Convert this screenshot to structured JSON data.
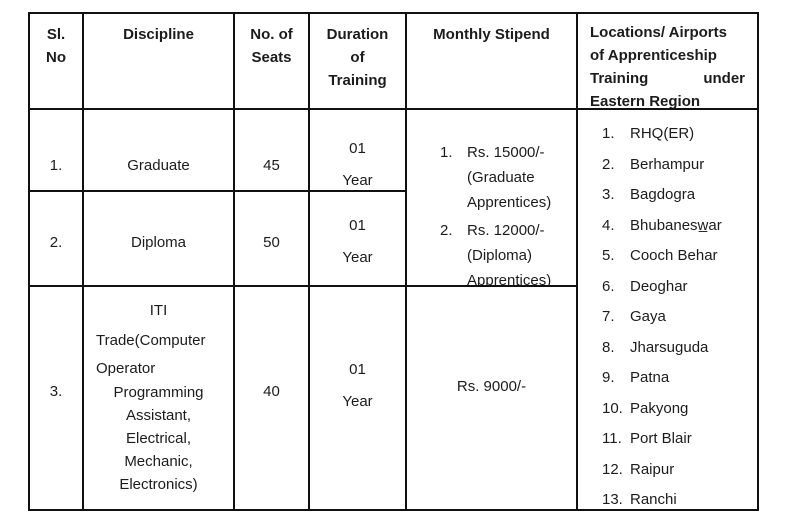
{
  "table": {
    "border_color": "#111111",
    "text_color": "#1c1c1c",
    "background": "#ffffff",
    "header": {
      "sl_no_line1": "Sl.",
      "sl_no_line2": "No",
      "discipline": "Discipline",
      "seats_line1": "No. of",
      "seats_line2": "Seats",
      "duration_line1": "Duration",
      "duration_line2": "of",
      "duration_line3": "Training",
      "stipend": "Monthly Stipend",
      "locations_line1": "Locations/ Airports",
      "locations_line2": "of Apprenticeship",
      "locations_line3_left": "Training",
      "locations_line3_right": "under",
      "locations_line4": "Eastern Region"
    },
    "rows": [
      {
        "sl": "1.",
        "discipline": "Graduate",
        "seats": "45",
        "duration_line1": "01",
        "duration_line2": "Year"
      },
      {
        "sl": "2.",
        "discipline": "Diploma",
        "seats": "50",
        "duration_line1": "01",
        "duration_line2": "Year"
      },
      {
        "sl": "3.",
        "seats": "40",
        "duration_line1": "01",
        "duration_line2": "Year",
        "stipend": "Rs. 9000/-",
        "discipline_lines": [
          "ITI",
          "Trade(Computer",
          "Operator",
          "Programming",
          "Assistant,",
          "Electrical,",
          "Mechanic,",
          "Electronics)"
        ]
      }
    ],
    "stipend_merged": {
      "items": [
        {
          "num": "1.",
          "line1": "Rs. 15000/-",
          "line2": "(Graduate",
          "line3": "Apprentices)"
        },
        {
          "num": "2.",
          "line1": "Rs. 12000/-",
          "line2": "(Diploma)",
          "line3": "Apprentices)"
        }
      ]
    },
    "locations_items": [
      {
        "num": "1.",
        "name": "RHQ(ER)"
      },
      {
        "num": "2.",
        "name": "Berhampur"
      },
      {
        "num": "3.",
        "name": "Bagdogra"
      },
      {
        "num": "4.",
        "name": "Bhubanesw̲ar"
      },
      {
        "num": "5.",
        "name": "Cooch Behar"
      },
      {
        "num": "6.",
        "name": "Deoghar"
      },
      {
        "num": "7.",
        "name": "Gaya"
      },
      {
        "num": "8.",
        "name": "Jharsuguda"
      },
      {
        "num": "9.",
        "name": "Patna"
      },
      {
        "num": "10.",
        "name": "Pakyong"
      },
      {
        "num": "11.",
        "name": "Port Blair"
      },
      {
        "num": "12.",
        "name": "Raipur"
      },
      {
        "num": "13.",
        "name": "Ranchi"
      }
    ]
  }
}
